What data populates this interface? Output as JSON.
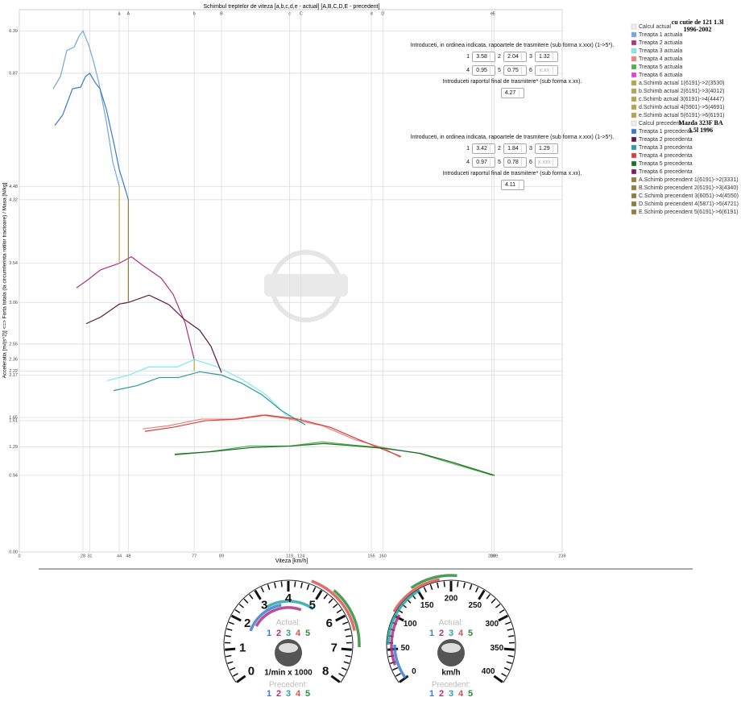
{
  "chart_data": {
    "type": "line",
    "title": "Schimbul treptelor de viteza [a,b,c,d,e - actual] [A,B,C,D,E - precedent]",
    "xlabel": "Viteza [km/h]",
    "ylabel": "Acceleratia [m/(s^2)] <=> Forta totala (la circumferinta rotilor tractoare) / Masa [N/kg]",
    "xlim": [
      0,
      239
    ],
    "ylim": [
      0,
      6.65
    ],
    "xticks": [
      0,
      28,
      31,
      44,
      48,
      77,
      89,
      119,
      124,
      155,
      160,
      208,
      209,
      239
    ],
    "yticks": [
      {
        "value": 0,
        "label": "0.00"
      },
      0.94,
      1.29,
      1.61,
      1.65,
      2.17,
      2.22,
      2.36,
      2.55,
      3.06,
      3.54,
      4.32,
      4.48,
      5.87,
      6.39
    ],
    "grid": true,
    "top_markers": [
      {
        "label": "a",
        "x": 44
      },
      {
        "label": "A",
        "x": 48
      },
      {
        "label": "b",
        "x": 77
      },
      {
        "label": "B",
        "x": 89
      },
      {
        "label": "c",
        "x": 119
      },
      {
        "label": "C",
        "x": 124
      },
      {
        "label": "d",
        "x": 155
      },
      {
        "label": "D",
        "x": 160
      },
      {
        "label": "e",
        "x": 208
      },
      {
        "label": "E",
        "x": 209
      }
    ],
    "legend_groups": [
      "Calcul actual",
      "Calcul precedent"
    ],
    "series": [
      {
        "name": "Treapta 1 actuala",
        "color": "#6fa8dc",
        "x": [
          14.9,
          18.1,
          20.9,
          24.1,
          26.2,
          28,
          30.5,
          32.6,
          34.8,
          38.3,
          41.1,
          44
        ],
        "values": [
          5.68,
          5.83,
          6.15,
          6.19,
          6.32,
          6.39,
          6.22,
          6.02,
          5.78,
          5.28,
          4.79,
          4.48
        ]
      },
      {
        "name": "Treapta 2 actuala",
        "color": "#b0307f",
        "x": [
          25.2,
          29.8,
          35.8,
          44,
          49.3,
          54.6,
          62.4,
          67.7,
          73,
          77
        ],
        "values": [
          3.24,
          3.33,
          3.46,
          3.54,
          3.62,
          3.51,
          3.36,
          3.16,
          2.81,
          2.36
        ]
      },
      {
        "name": "Treapta 3 actuala",
        "color": "#80e8f0",
        "x": [
          38.7,
          48.2,
          57.1,
          69.5,
          77,
          87.2,
          97.9,
          108.5,
          117.4,
          125.9
        ],
        "values": [
          2.1,
          2.17,
          2.27,
          2.27,
          2.36,
          2.27,
          2.12,
          1.93,
          1.68,
          1.56
        ]
      },
      {
        "name": "Treapta 4 actuala",
        "color": "#f08080",
        "x": [
          54.3,
          66,
          80.1,
          94.3,
          106.7,
          119.1,
          133.3,
          147.5,
          160,
          167.7
        ],
        "values": [
          1.51,
          1.55,
          1.63,
          1.63,
          1.68,
          1.63,
          1.55,
          1.38,
          1.28,
          1.16
        ]
      },
      {
        "name": "Treapta 5 actuala",
        "color": "#4caf50",
        "x": [
          68.4,
          83.7,
          101.4,
          119.1,
          133.3,
          147.5,
          160,
          175.9,
          190.1,
          208.5
        ],
        "values": [
          1.19,
          1.23,
          1.3,
          1.3,
          1.35,
          1.31,
          1.28,
          1.21,
          1.09,
          0.94
        ]
      },
      {
        "name": "Treapta 6 actuala",
        "color": "#e040e0",
        "x": [],
        "values": []
      },
      {
        "name": "a.Schimb actual 1(6191)->2(3530)",
        "color": "#b5a642",
        "x": [
          44,
          44
        ],
        "values": [
          4.48,
          3.54
        ]
      },
      {
        "name": "b.Schimb actual 2(6191)->3(4012)",
        "color": "#b5a642",
        "x": [
          77,
          77
        ],
        "values": [
          2.36,
          2.22
        ]
      },
      {
        "name": "c.Schimb actual 3(6191)->4(4447)",
        "color": "#b5a642",
        "x": [
          119,
          119
        ],
        "values": [
          1.65,
          1.61
        ]
      },
      {
        "name": "d.Schimb actual 4(5901)->5(4691)",
        "color": "#b5a642",
        "x": [
          155,
          155
        ],
        "values": [
          1.29,
          1.29
        ]
      },
      {
        "name": "e.Schimb actual 5(6191)->6(6191)",
        "color": "#b5a642",
        "x": [
          208,
          208
        ],
        "values": [
          0.94,
          0.94
        ]
      },
      {
        "name": "Treapta 1 precedenta",
        "color": "#3c78c8",
        "x": [
          15.6,
          19.1,
          23.4,
          27,
          29.1,
          31,
          33.3,
          35.5,
          38.3,
          41.8,
          44,
          48
        ],
        "values": [
          5.23,
          5.36,
          5.68,
          5.7,
          5.83,
          5.87,
          5.76,
          5.68,
          5.43,
          4.99,
          4.69,
          4.32
        ]
      },
      {
        "name": "Treapta 2 precedenta",
        "color": "#5c1a3a",
        "x": [
          29.4,
          35.8,
          44,
          48,
          57.1,
          61.7,
          66,
          72.3,
          79.4,
          84.4,
          89
        ],
        "values": [
          2.8,
          2.88,
          3.04,
          3.06,
          3.15,
          3.09,
          3.03,
          2.86,
          2.72,
          2.52,
          2.2
        ]
      },
      {
        "name": "Treapta 3 precedenta",
        "color": "#2a9aa0",
        "x": [
          41.5,
          51.8,
          61.7,
          70.2,
          79.4,
          89,
          97.9,
          106.7,
          115.6,
          125.9
        ],
        "values": [
          1.98,
          2.04,
          2.14,
          2.14,
          2.21,
          2.17,
          2.07,
          1.93,
          1.73,
          1.56
        ]
      },
      {
        "name": "Treapta 4 precedenta",
        "color": "#d43f3a",
        "x": [
          55.3,
          67.7,
          81.9,
          96.1,
          108.5,
          122.7,
          136.9,
          149.3,
          158.2,
          168.1
        ],
        "values": [
          1.48,
          1.53,
          1.61,
          1.63,
          1.68,
          1.63,
          1.53,
          1.38,
          1.28,
          1.17
        ]
      },
      {
        "name": "Treapta 5 precedenta",
        "color": "#1b6e20",
        "x": [
          68.4,
          84.4,
          102.1,
          119.9,
          134,
          148.2,
          161,
          176.6,
          190.8,
          209.2
        ],
        "values": [
          1.2,
          1.23,
          1.28,
          1.3,
          1.33,
          1.3,
          1.27,
          1.21,
          1.1,
          0.94
        ]
      },
      {
        "name": "Treapta 6 precedenta",
        "color": "#7a1a6a",
        "x": [],
        "values": []
      },
      {
        "name": "A.Schimb precendent 1(6191)->2(3331)",
        "color": "#8b7d3a",
        "x": [
          48,
          48
        ],
        "values": [
          4.32,
          3.06
        ]
      },
      {
        "name": "B.Schimb precendent 2(6191)->3(4340)",
        "color": "#8b7d3a",
        "x": [
          89,
          89
        ],
        "values": [
          2.17,
          2.17
        ]
      },
      {
        "name": "C.Schimb precendent 3(6051)->4(4550)",
        "color": "#8b7d3a",
        "x": [
          124,
          124
        ],
        "values": [
          1.61,
          1.65
        ]
      },
      {
        "name": "D.Schimb precendent 4(5871)->5(4721)",
        "color": "#8b7d3a",
        "x": [
          160,
          160
        ],
        "values": [
          1.29,
          1.29
        ]
      },
      {
        "name": "E.Schimb precendent 5(6191)->6(6191)",
        "color": "#8b7d3a",
        "x": [
          209,
          209
        ],
        "values": [
          0.94,
          0.94
        ]
      }
    ]
  },
  "cars": [
    {
      "lines": [
        "cu cutie de 121 1.3l",
        "1996-2002"
      ]
    },
    {
      "lines": [
        "Mazda 323F BA",
        "1.5l 1996"
      ]
    }
  ],
  "panels": [
    {
      "instruction": "Introduceti, in ordinea indicata, rapoartele de trasmitere (sub forma x.xxx) (1->5*).",
      "inputs": [
        {
          "label": "1",
          "value": "3.58"
        },
        {
          "label": "2",
          "value": "2.04"
        },
        {
          "label": "3",
          "value": "1.32"
        },
        {
          "label": "4",
          "value": "0.95"
        },
        {
          "label": "5",
          "value": "0.75"
        },
        {
          "label": "6",
          "placeholder": "x.xx"
        }
      ],
      "final_instruction": "Introduceti raportul final de trasmitere* (sub forma x.xx).",
      "final_value": "4.27"
    },
    {
      "instruction": "Introduceti, in ordinea indicata, rapoartele de trasmitere (sub forma x.xxx) (1->5*).",
      "inputs": [
        {
          "label": "1",
          "value": "3.42"
        },
        {
          "label": "2",
          "value": "1.84"
        },
        {
          "label": "3",
          "value": "1.29"
        },
        {
          "label": "4",
          "value": "0.97"
        },
        {
          "label": "5",
          "value": "0.78"
        },
        {
          "label": "6",
          "placeholder": "x.xxx"
        }
      ],
      "final_instruction": "Introduceti raportul final de trasmitere* (sub forma x.xx).",
      "final_value": "4.11"
    }
  ],
  "gauges": [
    {
      "range": [
        0,
        8
      ],
      "labels": [
        0,
        1,
        2,
        3,
        4,
        5,
        6,
        7,
        8
      ],
      "unit": "1/min x 1000",
      "actual_label": "Actual:",
      "actual_gears": [
        "1",
        "2",
        "3",
        "4",
        "5"
      ],
      "precedent_label": "Precedent:",
      "precedent_gears": [
        "1",
        "2",
        "3",
        "4",
        "5"
      ]
    },
    {
      "range": [
        0,
        400
      ],
      "labels": [
        0,
        50,
        100,
        150,
        200,
        250,
        300,
        350,
        400
      ],
      "unit": "km/h",
      "actual_label": "Actual:",
      "actual_gears": [
        "1",
        "2",
        "3",
        "4",
        "5"
      ],
      "precedent_label": "Precedent:",
      "precedent_gears": [
        "1",
        "2",
        "3",
        "4",
        "5"
      ]
    }
  ]
}
